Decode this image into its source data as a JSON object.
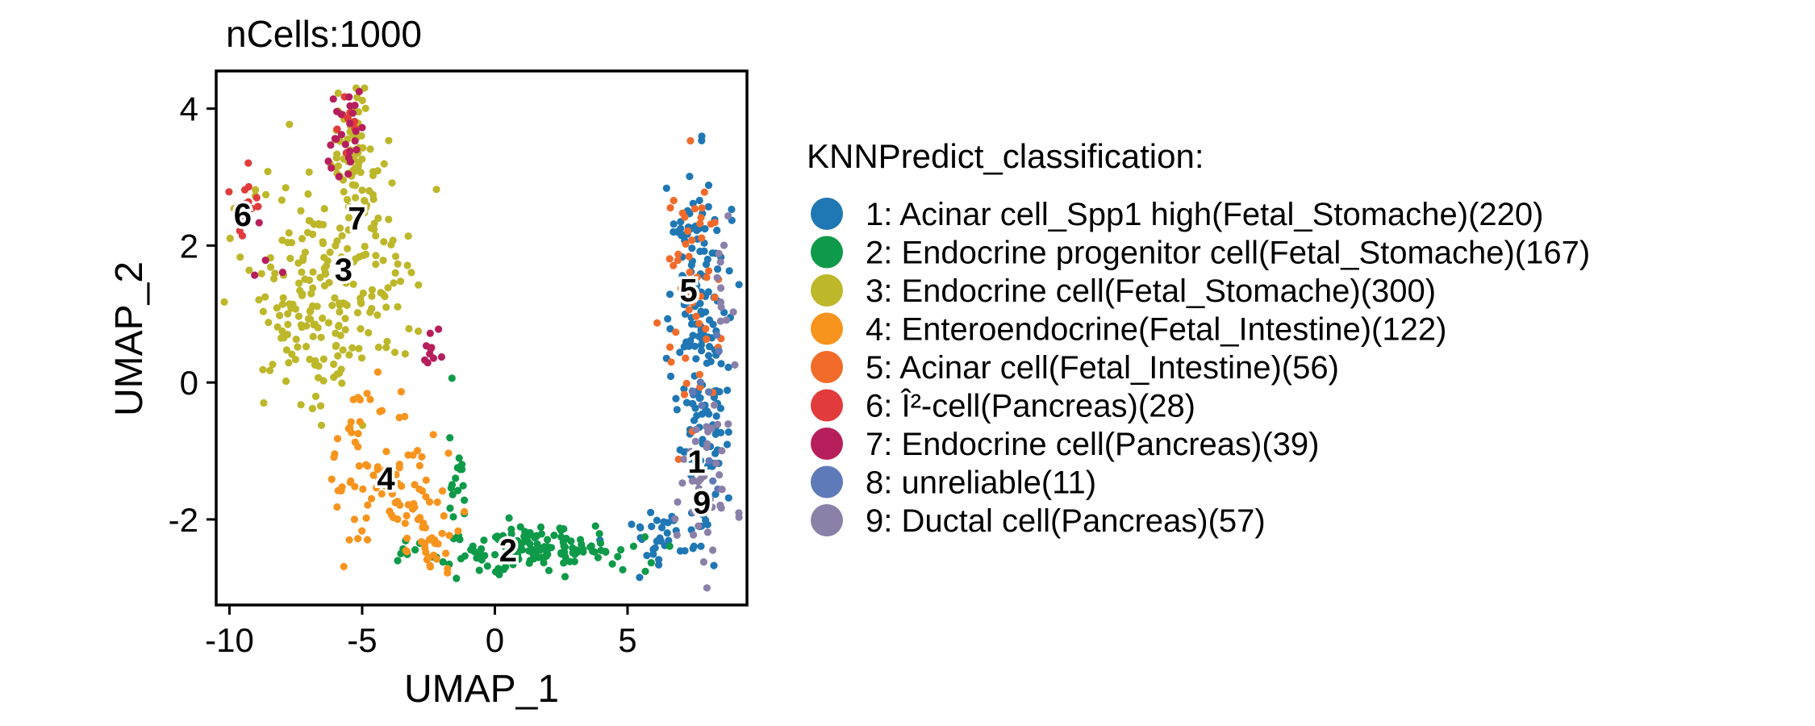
{
  "chart_data": {
    "type": "scatter",
    "title": "nCells:1000",
    "xlabel": "UMAP_1",
    "ylabel": "UMAP_2",
    "xlim": [
      -10.5,
      9.5
    ],
    "ylim": [
      -3.25,
      4.55
    ],
    "xticks": [
      -10,
      -5,
      0,
      5
    ],
    "yticks": [
      -2,
      0,
      2,
      4
    ],
    "xtick_labels": [
      "-10",
      "-5",
      "0",
      "5"
    ],
    "ytick_labels": [
      "-2",
      "0",
      "2",
      "4"
    ],
    "legend": {
      "title": "KNNPredict_classification:",
      "position": "right",
      "entries": [
        {
          "id": "1",
          "label": "1: Acinar cell_Spp1 high(Fetal_Stomache)(220)",
          "color": "#1f77b4"
        },
        {
          "id": "2",
          "label": "2: Endocrine progenitor cell(Fetal_Stomache)(167)",
          "color": "#0e9a48"
        },
        {
          "id": "3",
          "label": "3: Endocrine cell(Fetal_Stomache)(300)",
          "color": "#bdb72a"
        },
        {
          "id": "4",
          "label": "4: Enteroendocrine(Fetal_Intestine)(122)",
          "color": "#f7941d"
        },
        {
          "id": "5",
          "label": "5: Acinar cell(Fetal_Intestine)(56)",
          "color": "#f26b2a"
        },
        {
          "id": "6",
          "label": "6: Î²-cell(Pancreas)(28)",
          "color": "#e23b3b"
        },
        {
          "id": "7",
          "label": "7: Endocrine cell(Pancreas)(39)",
          "color": "#b71f5c"
        },
        {
          "id": "8",
          "label": "8: unreliable(11)",
          "color": "#5f7ab8"
        },
        {
          "id": "9",
          "label": "9: Ductal cell(Pancreas)(57)",
          "color": "#8a80a8"
        }
      ]
    },
    "cluster_labels": [
      {
        "text": "1",
        "x": 7.6,
        "y": -1.15
      },
      {
        "text": "2",
        "x": 0.5,
        "y": -2.45
      },
      {
        "text": "3",
        "x": -5.7,
        "y": 1.65
      },
      {
        "text": "4",
        "x": -4.1,
        "y": -1.4
      },
      {
        "text": "5",
        "x": 7.3,
        "y": 1.35
      },
      {
        "text": "6",
        "x": -9.5,
        "y": 2.45
      },
      {
        "text": "7",
        "x": -5.2,
        "y": 2.4
      },
      {
        "text": "9",
        "x": 7.8,
        "y": -1.75
      }
    ],
    "series": [
      {
        "id": "1",
        "name": "Acinar cell_Spp1 high(Fetal_Stomache)",
        "count": 220,
        "regions": [
          {
            "cx": 7.8,
            "cy": 0.5,
            "sx": 0.55,
            "sy": 1.2,
            "n": 150
          },
          {
            "cx": 6.5,
            "cy": -2.2,
            "sx": 0.9,
            "sy": 0.25,
            "n": 40
          },
          {
            "cx": 7.4,
            "cy": 2.2,
            "sx": 0.45,
            "sy": 0.3,
            "n": 30
          }
        ]
      },
      {
        "id": "2",
        "name": "Endocrine progenitor cell(Fetal_Stomache)",
        "count": 167,
        "regions": [
          {
            "cx": 1.5,
            "cy": -2.45,
            "sx": 2.0,
            "sy": 0.18,
            "n": 150
          },
          {
            "cx": -1.4,
            "cy": -1.2,
            "sx": 0.2,
            "sy": 0.45,
            "n": 17
          }
        ]
      },
      {
        "id": "3",
        "name": "Endocrine cell(Fetal_Stomache)",
        "count": 300,
        "regions": [
          {
            "cx": -7.0,
            "cy": 1.2,
            "sx": 1.1,
            "sy": 0.85,
            "n": 150
          },
          {
            "cx": -4.8,
            "cy": 2.0,
            "sx": 0.9,
            "sy": 0.8,
            "n": 100
          },
          {
            "cx": -5.4,
            "cy": 3.5,
            "sx": 0.35,
            "sy": 0.4,
            "n": 50
          }
        ]
      },
      {
        "id": "4",
        "name": "Enteroendocrine(Fetal_Intestine)",
        "count": 122,
        "regions": [
          {
            "cx": -4.3,
            "cy": -1.2,
            "sx": 0.9,
            "sy": 0.6,
            "n": 80
          },
          {
            "cx": -2.5,
            "cy": -2.2,
            "sx": 0.6,
            "sy": 0.3,
            "n": 42
          }
        ]
      },
      {
        "id": "5",
        "name": "Acinar cell(Fetal_Intestine)",
        "count": 56,
        "regions": [
          {
            "cx": 7.5,
            "cy": 1.4,
            "sx": 0.6,
            "sy": 0.9,
            "n": 56
          }
        ]
      },
      {
        "id": "6",
        "name": "Î²-cell(Pancreas)",
        "count": 28,
        "regions": [
          {
            "cx": -9.4,
            "cy": 2.5,
            "sx": 0.3,
            "sy": 0.25,
            "n": 20
          },
          {
            "cx": -5.6,
            "cy": 3.8,
            "sx": 0.25,
            "sy": 0.25,
            "n": 8
          }
        ]
      },
      {
        "id": "7",
        "name": "Endocrine cell(Pancreas)",
        "count": 39,
        "regions": [
          {
            "cx": -5.5,
            "cy": 3.7,
            "sx": 0.35,
            "sy": 0.35,
            "n": 25
          },
          {
            "cx": -2.4,
            "cy": 0.4,
            "sx": 0.15,
            "sy": 0.2,
            "n": 10
          },
          {
            "cx": -8.5,
            "cy": 1.6,
            "sx": 0.3,
            "sy": 0.3,
            "n": 4
          }
        ]
      },
      {
        "id": "8",
        "name": "unreliable",
        "count": 11,
        "regions": [
          {
            "cx": 8.0,
            "cy": -0.5,
            "sx": 0.6,
            "sy": 1.2,
            "n": 11
          }
        ]
      },
      {
        "id": "9",
        "name": "Ductal cell(Pancreas)",
        "count": 57,
        "regions": [
          {
            "cx": 7.8,
            "cy": -1.6,
            "sx": 0.5,
            "sy": 0.55,
            "n": 45
          },
          {
            "cx": 8.6,
            "cy": 1.4,
            "sx": 0.25,
            "sy": 0.5,
            "n": 12
          }
        ]
      }
    ]
  }
}
